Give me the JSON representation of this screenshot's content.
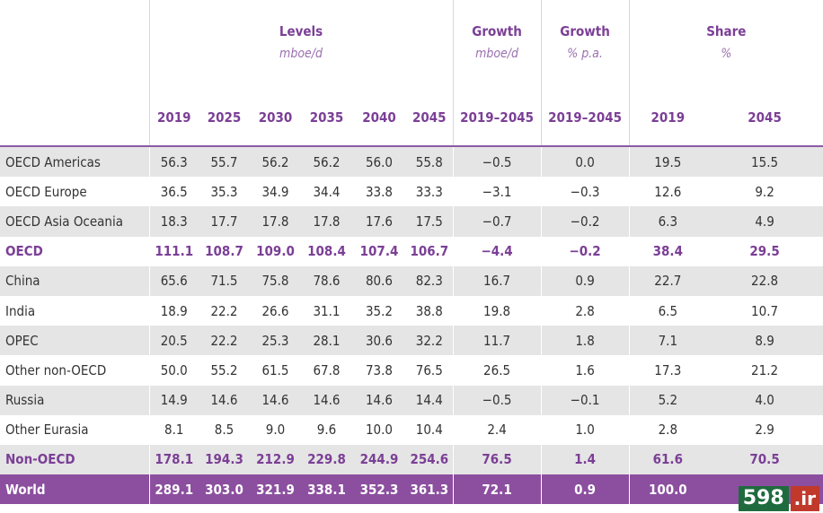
{
  "groups": {
    "levels": {
      "title": "Levels",
      "unit": "mboe/d"
    },
    "growth_abs": {
      "title": "Growth",
      "unit": "mboe/d"
    },
    "growth_pct": {
      "title": "Growth",
      "unit": "% p.a."
    },
    "share": {
      "title": "Share",
      "unit": "%"
    }
  },
  "columns": [
    "2019",
    "2025",
    "2030",
    "2035",
    "2040",
    "2045",
    "2019–2045",
    "2019–2045",
    "2019",
    "2045"
  ],
  "rows": [
    {
      "label": "OECD Americas",
      "values": [
        "56.3",
        "55.7",
        "56.2",
        "56.2",
        "56.0",
        "55.8",
        "−0.5",
        "0.0",
        "19.5",
        "15.5"
      ]
    },
    {
      "label": "OECD Europe",
      "values": [
        "36.5",
        "35.3",
        "34.9",
        "34.4",
        "33.8",
        "33.3",
        "−3.1",
        "−0.3",
        "12.6",
        "9.2"
      ]
    },
    {
      "label": "OECD Asia Oceania",
      "values": [
        "18.3",
        "17.7",
        "17.8",
        "17.8",
        "17.6",
        "17.5",
        "−0.7",
        "−0.2",
        "6.3",
        "4.9"
      ]
    },
    {
      "label": "OECD",
      "values": [
        "111.1",
        "108.7",
        "109.0",
        "108.4",
        "107.4",
        "106.7",
        "−4.4",
        "−0.2",
        "38.4",
        "29.5"
      ]
    },
    {
      "label": "China",
      "values": [
        "65.6",
        "71.5",
        "75.8",
        "78.6",
        "80.6",
        "82.3",
        "16.7",
        "0.9",
        "22.7",
        "22.8"
      ]
    },
    {
      "label": "India",
      "values": [
        "18.9",
        "22.2",
        "26.6",
        "31.1",
        "35.2",
        "38.8",
        "19.8",
        "2.8",
        "6.5",
        "10.7"
      ]
    },
    {
      "label": "OPEC",
      "values": [
        "20.5",
        "22.2",
        "25.3",
        "28.1",
        "30.6",
        "32.2",
        "11.7",
        "1.8",
        "7.1",
        "8.9"
      ]
    },
    {
      "label": "Other non-OECD",
      "values": [
        "50.0",
        "55.2",
        "61.5",
        "67.8",
        "73.8",
        "76.5",
        "26.5",
        "1.6",
        "17.3",
        "21.2"
      ]
    },
    {
      "label": "Russia",
      "values": [
        "14.9",
        "14.6",
        "14.6",
        "14.6",
        "14.6",
        "14.4",
        "−0.5",
        "−0.1",
        "5.2",
        "4.0"
      ]
    },
    {
      "label": "Other Eurasia",
      "values": [
        "8.1",
        "8.5",
        "9.0",
        "9.6",
        "10.0",
        "10.4",
        "2.4",
        "1.0",
        "2.8",
        "2.9"
      ]
    },
    {
      "label": "Non-OECD",
      "values": [
        "178.1",
        "194.3",
        "212.9",
        "229.8",
        "244.9",
        "254.6",
        "76.5",
        "1.4",
        "61.6",
        "70.5"
      ]
    },
    {
      "label": "World",
      "values": [
        "289.1",
        "303.0",
        "321.9",
        "338.1",
        "352.3",
        "361.3",
        "72.1",
        "0.9",
        "100.0",
        ""
      ]
    }
  ],
  "watermark": {
    "number": "598",
    "tld": ".ir"
  },
  "colors": {
    "accent": "#7b3f96",
    "world_bg": "#8c4f9f",
    "shade": "#e5e5e5",
    "watermark_green": "#1f6b3e",
    "watermark_red": "#c0392b"
  }
}
